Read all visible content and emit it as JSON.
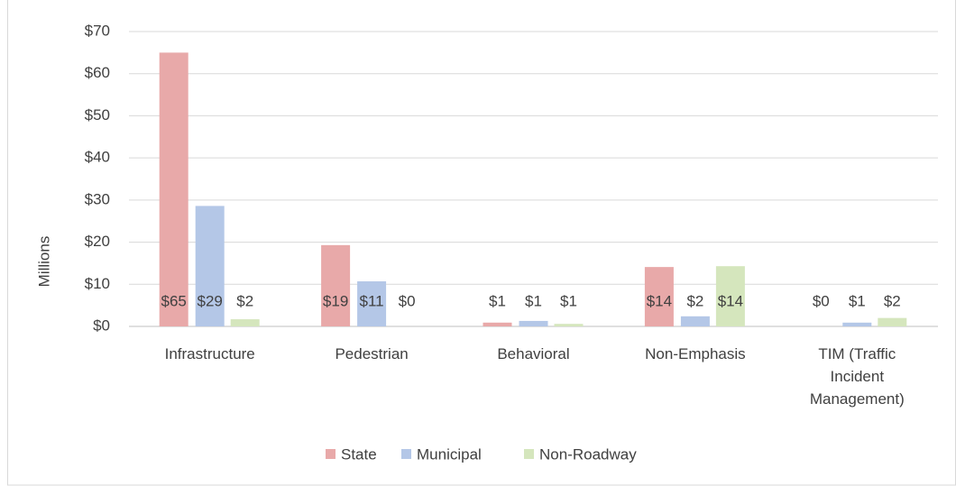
{
  "chart_data": {
    "type": "bar",
    "y_label": "Millions",
    "categories": [
      "Infrastructure",
      "Pedestrian",
      "Behavioral",
      "Non-Emphasis",
      "TIM (Traffic Incident Management)"
    ],
    "series": [
      {
        "name": "State",
        "color": "#e8a9a9",
        "values": [
          65,
          19.3,
          0.9,
          14.1,
          0
        ],
        "value_labels": [
          "$65",
          "$19",
          "$1",
          "$14",
          "$0"
        ]
      },
      {
        "name": "Municipal",
        "color": "#b4c7e7",
        "values": [
          28.6,
          10.7,
          1.3,
          2.4,
          0.9
        ],
        "value_labels": [
          "$29",
          "$11",
          "$1",
          "$2",
          "$1"
        ]
      },
      {
        "name": "Non-Roadway",
        "color": "#d5e6bd",
        "values": [
          1.7,
          0,
          0.6,
          14.3,
          2.0
        ],
        "value_labels": [
          "$2",
          "$0",
          "$1",
          "$14",
          "$2"
        ]
      }
    ],
    "ylim": [
      0,
      70
    ],
    "yticks": [
      {
        "value": 0,
        "label": "$0"
      },
      {
        "value": 10,
        "label": "$10"
      },
      {
        "value": 20,
        "label": "$20"
      },
      {
        "value": 30,
        "label": "$30"
      },
      {
        "value": 40,
        "label": "$40"
      },
      {
        "value": 50,
        "label": "$50"
      },
      {
        "value": 60,
        "label": "$60"
      },
      {
        "value": 70,
        "label": "$70"
      }
    ],
    "grid": true,
    "legend": "bottom"
  }
}
